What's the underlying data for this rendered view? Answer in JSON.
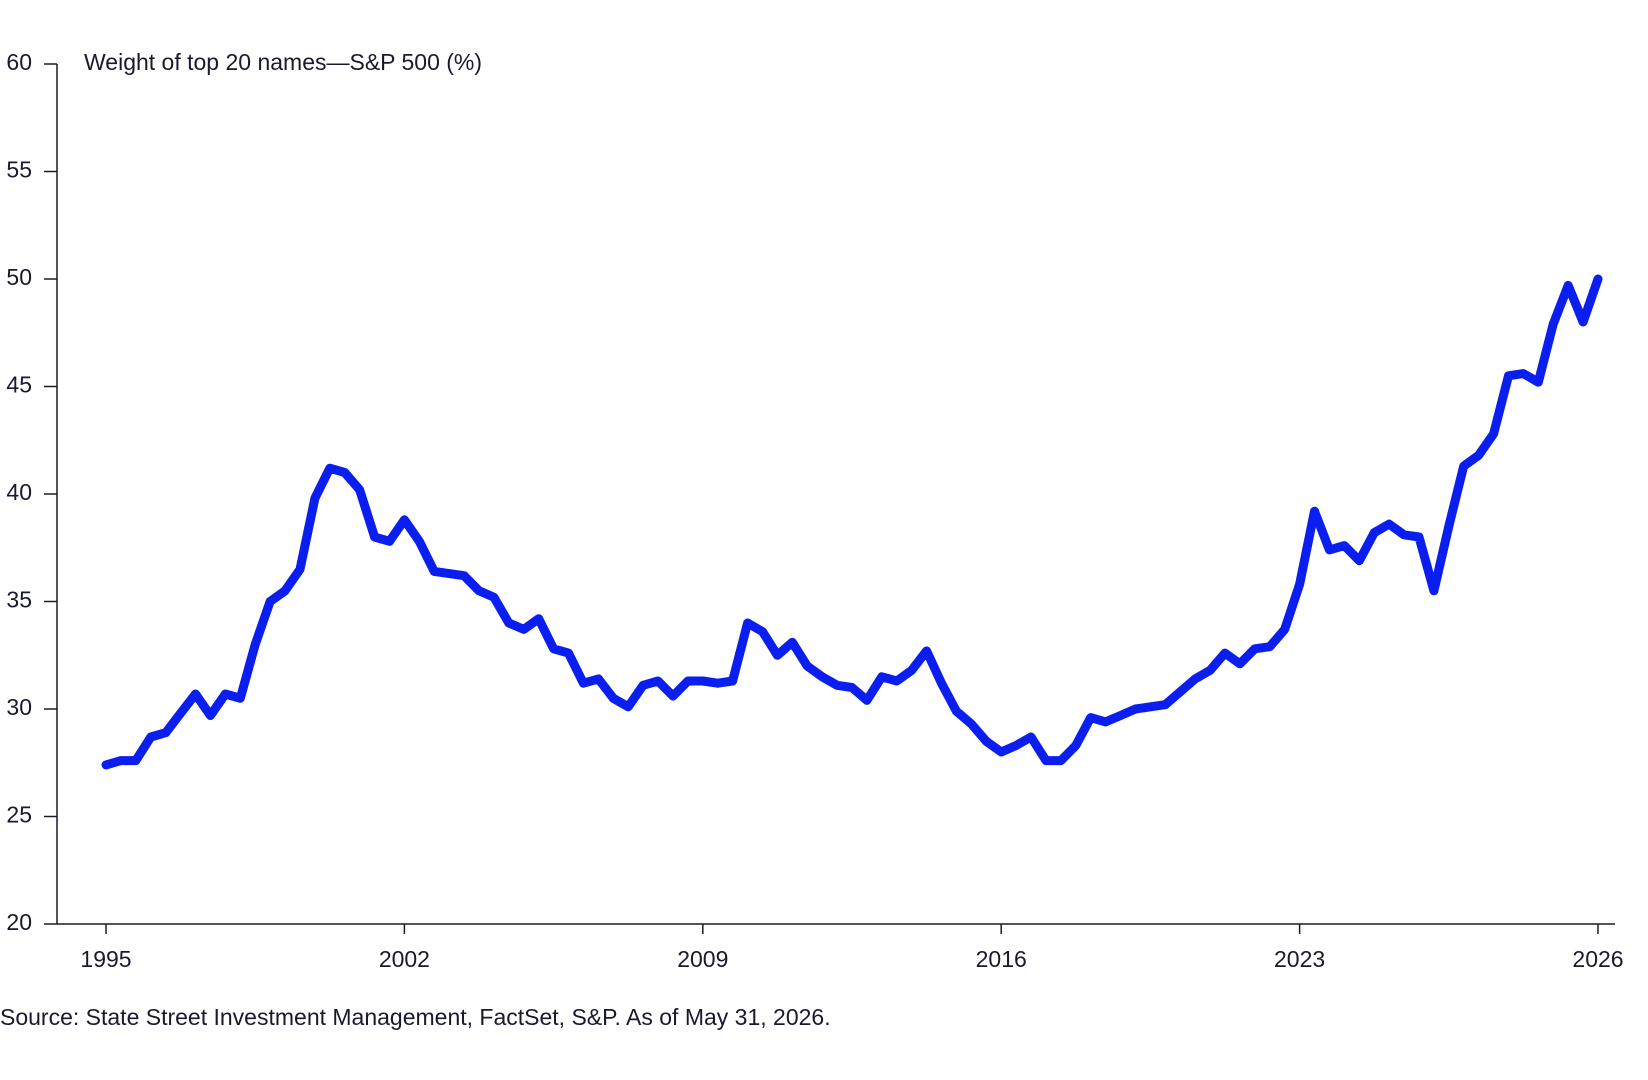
{
  "chart_data": {
    "type": "line",
    "y_label": "Weight of top 20 names—S&P 500 (%)",
    "note": "Source: State Street Investment Management, FactSet, S&P. As of May 31, 2026.",
    "color": "#0a1ef0",
    "categories": [
      "1995",
      null,
      null,
      null,
      null,
      null,
      null,
      null,
      null,
      null,
      null,
      null,
      null,
      null,
      null,
      null,
      null,
      null,
      null,
      null,
      "2002",
      null,
      null,
      null,
      null,
      null,
      null,
      null,
      null,
      null,
      null,
      null,
      null,
      null,
      null,
      null,
      null,
      null,
      null,
      null,
      "2009",
      null,
      null,
      null,
      null,
      null,
      null,
      null,
      null,
      null,
      null,
      null,
      null,
      null,
      null,
      null,
      null,
      null,
      null,
      null,
      "2016",
      null,
      null,
      null,
      null,
      null,
      null,
      null,
      null,
      null,
      null,
      null,
      null,
      null,
      null,
      null,
      null,
      null,
      null,
      null,
      "2023",
      null,
      null,
      null,
      null,
      null,
      null,
      null,
      null,
      null,
      null,
      null,
      null,
      null,
      null,
      null,
      null,
      null,
      null,
      null,
      "2026"
    ],
    "values": [
      27.4,
      27.6,
      27.6,
      28.7,
      28.9,
      29.8,
      30.7,
      29.7,
      30.7,
      30.5,
      33.0,
      35.0,
      35.5,
      36.5,
      39.8,
      41.2,
      41.0,
      40.2,
      38.0,
      37.8,
      38.8,
      37.8,
      36.4,
      36.3,
      36.2,
      35.5,
      35.2,
      34.0,
      33.7,
      34.2,
      32.8,
      32.6,
      31.2,
      31.4,
      30.5,
      30.1,
      31.1,
      31.3,
      30.6,
      31.3,
      31.3,
      31.2,
      31.3,
      34.0,
      33.6,
      32.5,
      33.1,
      32.0,
      31.5,
      31.1,
      31.0,
      30.4,
      31.5,
      31.3,
      31.8,
      32.7,
      31.2,
      29.9,
      29.3,
      28.5,
      28.0,
      28.3,
      28.7,
      27.6,
      27.6,
      28.3,
      29.6,
      29.4,
      29.7,
      30.0,
      30.1,
      30.2,
      30.8,
      31.4,
      31.8,
      32.6,
      32.1,
      32.8,
      32.9,
      33.7,
      35.8,
      39.2,
      37.4,
      37.6,
      36.9,
      38.2,
      38.6,
      38.1,
      38.0,
      35.5,
      38.5,
      41.3,
      41.8,
      42.8,
      45.5,
      45.6,
      45.2,
      47.9,
      49.7,
      48.0,
      50.0
    ],
    "ylim": [
      20,
      60
    ],
    "yticks": [
      20,
      25,
      30,
      35,
      40,
      45,
      50,
      55,
      60
    ],
    "grid": false
  }
}
